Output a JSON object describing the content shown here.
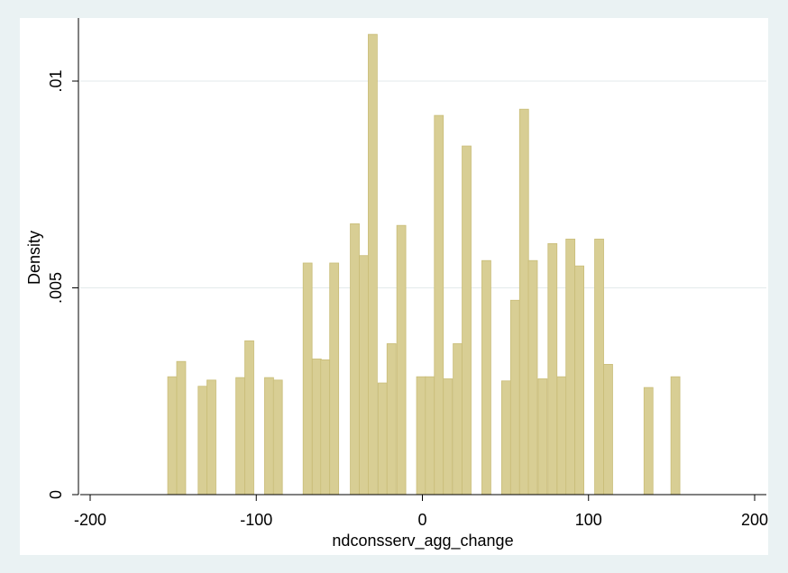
{
  "chart_data": {
    "type": "bar",
    "subtype": "histogram",
    "title": "",
    "xlabel": "ndconsserv_agg_change",
    "ylabel": "Density",
    "xlim": [
      -205,
      205
    ],
    "ylim": [
      0,
      0.0115
    ],
    "x_ticks": [
      -200,
      -100,
      0,
      100,
      200
    ],
    "x_tick_labels": [
      "-200",
      "-100",
      "0",
      "100",
      "200"
    ],
    "y_ticks": [
      0,
      0.005,
      0.01
    ],
    "y_tick_labels": [
      "0",
      ".005",
      ".01"
    ],
    "grid": "horizontal",
    "legend": "none",
    "bin_width": 5.4,
    "bins": [
      {
        "x": -150.6,
        "y": 0.00285
      },
      {
        "x": -145.2,
        "y": 0.00322
      },
      {
        "x": -132.3,
        "y": 0.00262
      },
      {
        "x": -127.0,
        "y": 0.00277
      },
      {
        "x": -109.6,
        "y": 0.00283
      },
      {
        "x": -104.2,
        "y": 0.00372
      },
      {
        "x": -92.3,
        "y": 0.00283
      },
      {
        "x": -87.0,
        "y": 0.00277
      },
      {
        "x": -69.1,
        "y": 0.0056
      },
      {
        "x": -63.6,
        "y": 0.00328
      },
      {
        "x": -58.5,
        "y": 0.00326
      },
      {
        "x": -53.1,
        "y": 0.0056
      },
      {
        "x": -40.7,
        "y": 0.00655
      },
      {
        "x": -35.3,
        "y": 0.00578
      },
      {
        "x": -29.9,
        "y": 0.01113
      },
      {
        "x": -24.0,
        "y": 0.0027
      },
      {
        "x": -18.6,
        "y": 0.00365
      },
      {
        "x": -12.7,
        "y": 0.00651
      },
      {
        "x": -0.8,
        "y": 0.00285
      },
      {
        "x": 4.5,
        "y": 0.00285
      },
      {
        "x": 9.9,
        "y": 0.00917
      },
      {
        "x": 15.3,
        "y": 0.0028
      },
      {
        "x": 21.2,
        "y": 0.00365
      },
      {
        "x": 26.6,
        "y": 0.00843
      },
      {
        "x": 38.5,
        "y": 0.00566
      },
      {
        "x": 50.4,
        "y": 0.00275
      },
      {
        "x": 55.8,
        "y": 0.0047
      },
      {
        "x": 61.2,
        "y": 0.00932
      },
      {
        "x": 66.5,
        "y": 0.00566
      },
      {
        "x": 72.4,
        "y": 0.0028
      },
      {
        "x": 78.3,
        "y": 0.00607
      },
      {
        "x": 83.8,
        "y": 0.00285
      },
      {
        "x": 89.1,
        "y": 0.00618
      },
      {
        "x": 94.5,
        "y": 0.00553
      },
      {
        "x": 106.4,
        "y": 0.00618
      },
      {
        "x": 111.8,
        "y": 0.00315
      },
      {
        "x": 136.1,
        "y": 0.00259
      },
      {
        "x": 152.3,
        "y": 0.00285
      }
    ]
  },
  "colors": {
    "background": "#eaf2f3",
    "plot_region": "#ffffff",
    "bar_fill": "#d8ce94",
    "bar_stroke": "#c9bd78",
    "grid": "#e3eaeb",
    "axis": "#000000"
  }
}
